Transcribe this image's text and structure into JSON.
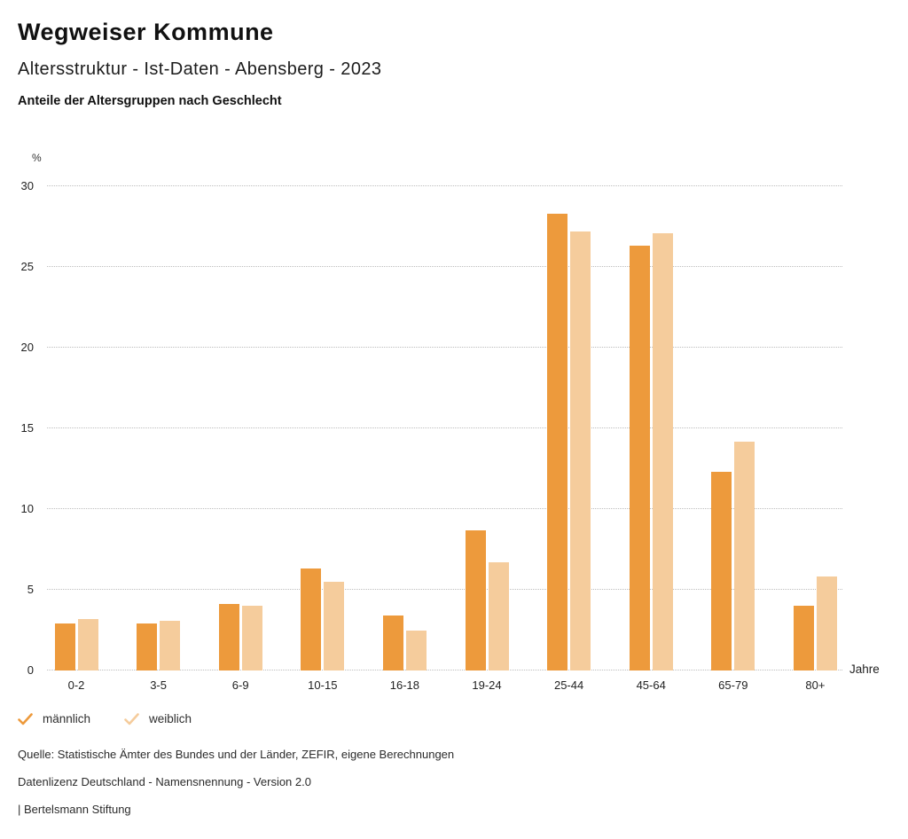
{
  "header": {
    "title": "Wegweiser Kommune",
    "subtitle": "Altersstruktur - Ist-Daten - Abensberg - 2023",
    "caption": "Anteile der Altersgruppen nach Geschlecht"
  },
  "chart_data": {
    "type": "bar",
    "title": "Anteile der Altersgruppen nach Geschlecht",
    "categories": [
      "0-2",
      "3-5",
      "6-9",
      "10-15",
      "16-18",
      "19-24",
      "25-44",
      "45-64",
      "65-79",
      "80+"
    ],
    "series": [
      {
        "name": "männlich",
        "color": "#ED9A3C",
        "values": [
          2.9,
          2.9,
          4.1,
          6.3,
          3.4,
          8.7,
          28.3,
          26.3,
          12.3,
          4.0
        ]
      },
      {
        "name": "weiblich",
        "color": "#F5CC9C",
        "values": [
          3.2,
          3.1,
          4.0,
          5.5,
          2.5,
          6.7,
          27.2,
          27.1,
          14.2,
          5.8
        ]
      }
    ],
    "ylabel": "%",
    "xlabel": "Jahre",
    "ylim": [
      0,
      30
    ],
    "yticks": [
      0,
      5,
      10,
      15,
      20,
      25,
      30
    ],
    "grid": "horizontal-dotted",
    "legend_position": "bottom-left",
    "legend_marker": "checkmark"
  },
  "footer": {
    "source": "Quelle: Statistische Ämter des Bundes und der Länder, ZEFIR, eigene Berechnungen",
    "license": "Datenlizenz Deutschland - Namensnennung - Version 2.0",
    "brand": "| Bertelsmann Stiftung"
  }
}
